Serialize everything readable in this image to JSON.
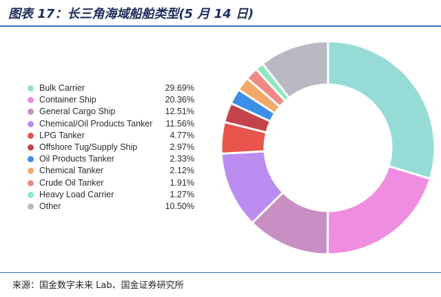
{
  "title": "图表 17：长三角海域船舶类型(5 月 14 日)",
  "source": "来源：国金数字未来 Lab、国金证券研究所",
  "chart_data": {
    "type": "pie",
    "style": "donut",
    "legend_position": "left",
    "categories": [
      "Bulk Carrier",
      "Container Ship",
      "General Cargo Ship",
      "Chemical/Oil Products Tanker",
      "LPG Tanker",
      "Offshore Tug/Supply Ship",
      "Oil Products Tanker",
      "Chemical Tanker",
      "Crude Oil Tanker",
      "Heavy Load Carrier",
      "Other"
    ],
    "values": [
      29.69,
      20.36,
      12.51,
      11.56,
      4.77,
      2.97,
      2.33,
      2.12,
      1.91,
      1.27,
      10.5
    ],
    "value_labels": [
      "29.69%",
      "20.36%",
      "12.51%",
      "11.56%",
      "4.77%",
      "2.97%",
      "2.33%",
      "2.12%",
      "1.91%",
      "1.27%",
      "10.50%"
    ],
    "colors": [
      "#96dbd6",
      "#ef8de0",
      "#c88fc4",
      "#bb8cf0",
      "#e8554c",
      "#c2444a",
      "#3d8ee6",
      "#f2a868",
      "#ee8a86",
      "#8fe8c0",
      "#b8b9c3"
    ]
  }
}
